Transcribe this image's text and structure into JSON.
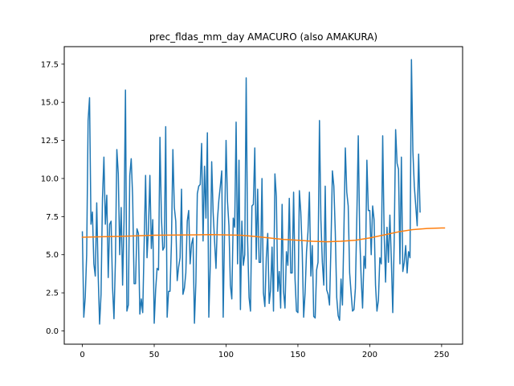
{
  "chart_data": {
    "type": "line",
    "title": "prec_fldas_mm_day AMACURO (also AMAKURA)",
    "xlabel": "",
    "ylabel": "",
    "xlim": [
      -12.6,
      264.6
    ],
    "ylim": [
      -0.87,
      18.65
    ],
    "xticks": [
      0,
      50,
      100,
      150,
      200,
      250
    ],
    "yticks": [
      0.0,
      2.5,
      5.0,
      7.5,
      10.0,
      12.5,
      15.0,
      17.5
    ],
    "xtick_labels": [
      "0",
      "50",
      "100",
      "150",
      "200",
      "250"
    ],
    "ytick_labels": [
      "0.0",
      "2.5",
      "5.0",
      "7.5",
      "10.0",
      "12.5",
      "15.0",
      "17.5"
    ],
    "grid": false,
    "series": [
      {
        "color": "#1f77b4",
        "x_start": 0,
        "values": [
          6.5,
          0.9,
          2.2,
          5.0,
          13.8,
          15.3,
          7.0,
          7.8,
          4.4,
          3.6,
          8.4,
          3.7,
          0.45,
          2.4,
          8.7,
          11.4,
          7.0,
          8.9,
          3.5,
          7.0,
          7.2,
          2.9,
          0.8,
          4.6,
          11.9,
          10.3,
          5.0,
          8.1,
          3.0,
          7.2,
          15.8,
          1.3,
          1.7,
          10.2,
          11.3,
          8.8,
          3.1,
          3.1,
          6.7,
          6.4,
          1.1,
          2.1,
          1.2,
          5.7,
          10.2,
          4.8,
          6.7,
          10.2,
          5.4,
          7.3,
          0.5,
          2.7,
          4.1,
          4.0,
          12.7,
          7.5,
          5.3,
          5.5,
          13.4,
          0.9,
          2.6,
          2.6,
          5.8,
          11.9,
          8.1,
          7.2,
          3.3,
          4.2,
          4.8,
          9.3,
          2.4,
          2.8,
          3.8,
          7.2,
          7.9,
          4.4,
          5.7,
          6.1,
          0.5,
          3.2,
          9.0,
          9.5,
          9.6,
          12.3,
          5.9,
          10.8,
          7.4,
          13.0,
          0.9,
          4.3,
          11.1,
          7.8,
          5.9,
          4.1,
          7.3,
          8.6,
          9.5,
          10.5,
          0.9,
          6.8,
          12.5,
          8.5,
          6.9,
          3.0,
          2.1,
          7.4,
          6.8,
          13.7,
          4.4,
          11.2,
          1.4,
          7.2,
          4.3,
          5.0,
          16.6,
          5.9,
          2.2,
          1.3,
          8.2,
          8.3,
          12.0,
          4.7,
          9.3,
          4.5,
          4.5,
          10.0,
          2.5,
          1.6,
          4.8,
          6.4,
          1.8,
          2.7,
          5.5,
          1.3,
          10.3,
          8.8,
          2.6,
          3.9,
          1.5,
          8.3,
          2.6,
          1.5,
          5.2,
          4.3,
          8.7,
          3.8,
          3.8,
          9.1,
          3.4,
          1.3,
          1.2,
          9.2,
          7.8,
          5.2,
          0.9,
          2.5,
          5.2,
          6.5,
          9.1,
          3.6,
          5.6,
          0.95,
          0.85,
          4.0,
          4.5,
          13.8,
          7.3,
          4.5,
          3.0,
          9.5,
          2.7,
          2.4,
          1.7,
          5.6,
          10.5,
          9.5,
          6.5,
          2.2,
          1.0,
          0.7,
          3.4,
          1.7,
          6.5,
          12.0,
          9.1,
          8.2,
          3.8,
          2.5,
          1.3,
          1.4,
          2.8,
          7.5,
          12.8,
          6.3,
          3.5,
          1.5,
          4.9,
          4.1,
          11.2,
          7.9,
          7.9,
          5.0,
          8.2,
          7.3,
          3.0,
          1.3,
          2.0,
          4.8,
          4.4,
          12.8,
          6.4,
          3.2,
          6.8,
          4.5,
          7.6,
          4.7,
          1.2,
          5.9,
          13.2,
          11.0,
          10.6,
          4.4,
          11.4,
          3.9,
          4.5,
          5.6,
          3.8,
          5.2,
          4.8,
          17.8,
          11.8,
          9.5,
          8.2,
          6.9,
          11.6,
          7.8
        ]
      },
      {
        "color": "#ff7f0e",
        "x_start": 0,
        "values_sampled": {
          "x": [
            0,
            25,
            50,
            75,
            90,
            100,
            110,
            120,
            130,
            140,
            150,
            160,
            170,
            180,
            190,
            200,
            210,
            220,
            230,
            240,
            250,
            252
          ],
          "y": [
            6.15,
            6.2,
            6.28,
            6.3,
            6.32,
            6.3,
            6.28,
            6.2,
            6.1,
            6.0,
            5.95,
            5.88,
            5.85,
            5.88,
            5.95,
            6.1,
            6.3,
            6.5,
            6.65,
            6.72,
            6.75,
            6.75
          ]
        }
      }
    ]
  }
}
